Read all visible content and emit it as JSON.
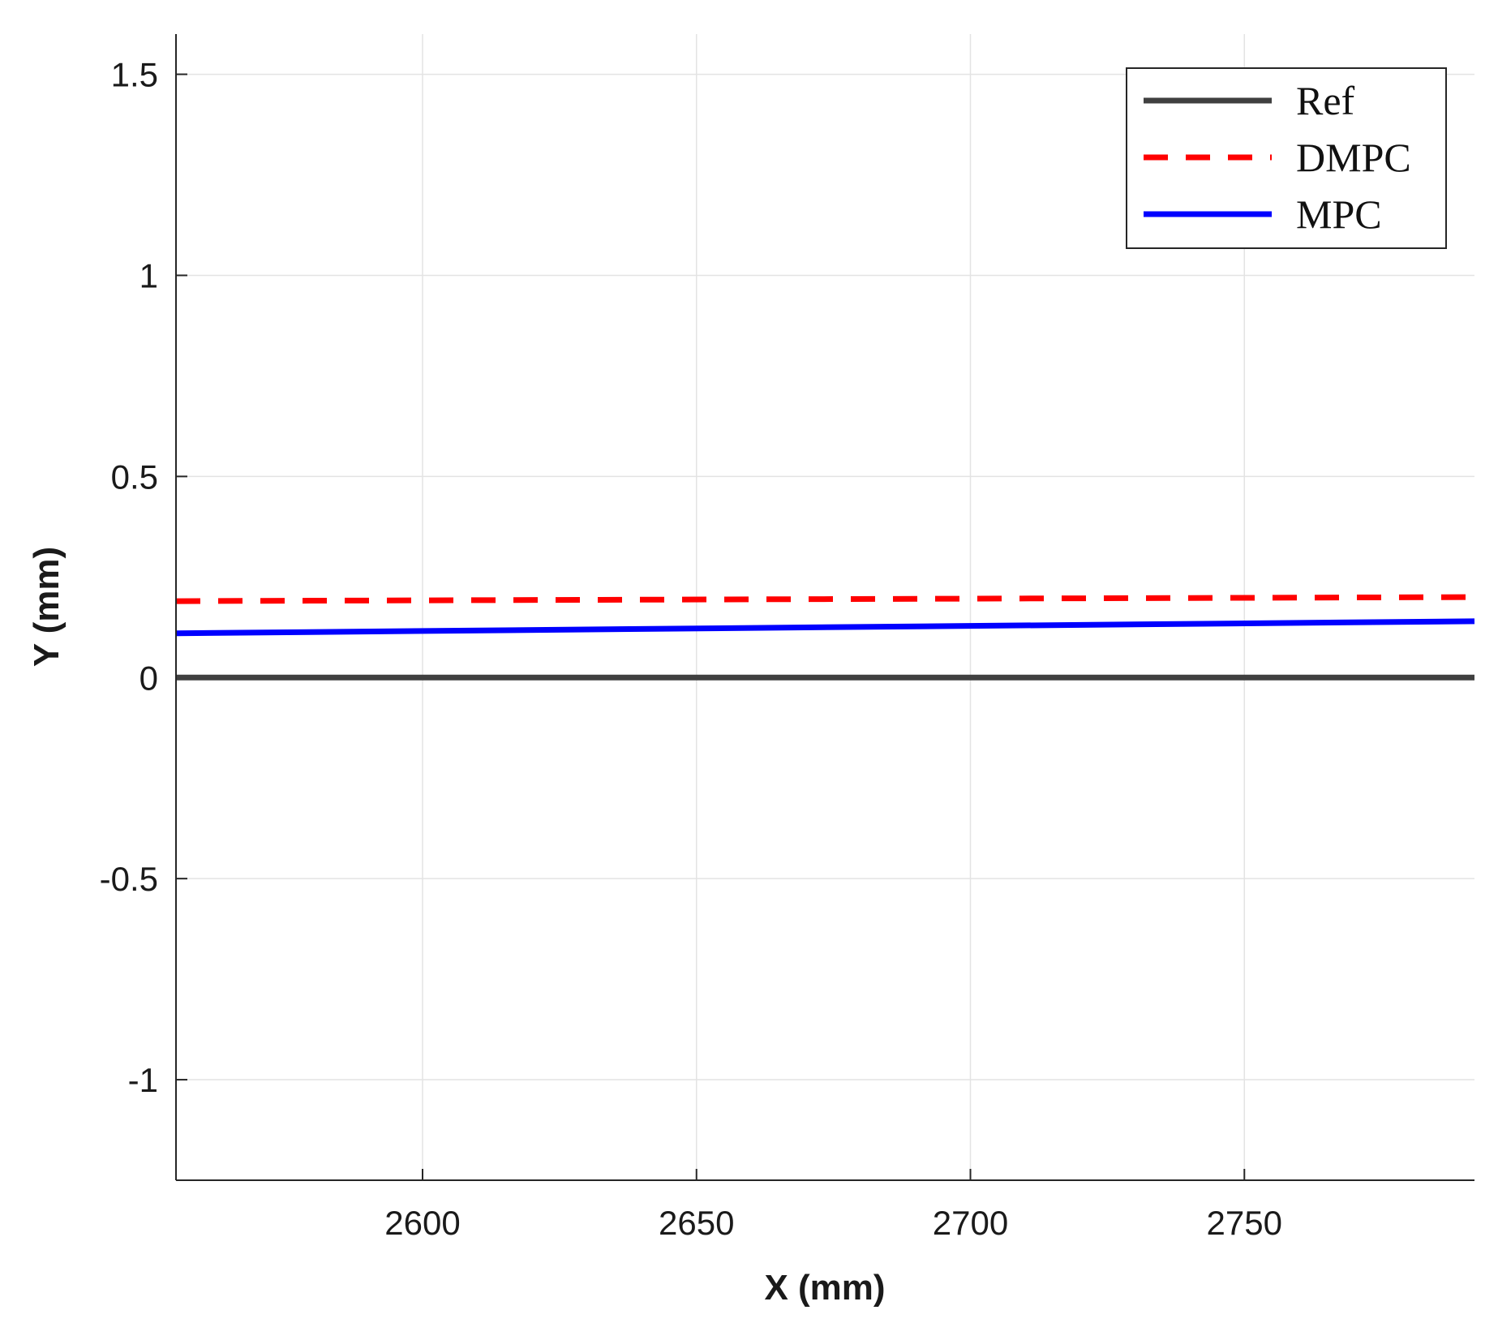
{
  "chart_data": {
    "type": "line",
    "title": "",
    "xlabel": "X (mm)",
    "ylabel": "Y (mm)",
    "xlim": [
      2555,
      2792
    ],
    "ylim": [
      -1.25,
      1.6
    ],
    "xticks": [
      2600,
      2650,
      2700,
      2750
    ],
    "xtick_labels": [
      "2600",
      "2650",
      "2700",
      "2750"
    ],
    "yticks": [
      -1,
      -0.5,
      0,
      0.5,
      1,
      1.5
    ],
    "ytick_labels": [
      "-1",
      "-0.5",
      "0",
      "0.5",
      "1",
      "1.5"
    ],
    "grid": true,
    "legend_position": "top-right",
    "series": [
      {
        "name": "Ref",
        "color": "#404040",
        "style": "solid",
        "x": [
          2555,
          2792
        ],
        "y": [
          0,
          0
        ]
      },
      {
        "name": "DMPC",
        "color": "#ff0000",
        "style": "dashed",
        "x": [
          2555,
          2792
        ],
        "y": [
          0.19,
          0.2
        ]
      },
      {
        "name": "MPC",
        "color": "#0000ff",
        "style": "solid",
        "x": [
          2555,
          2792
        ],
        "y": [
          0.11,
          0.14
        ]
      }
    ]
  }
}
